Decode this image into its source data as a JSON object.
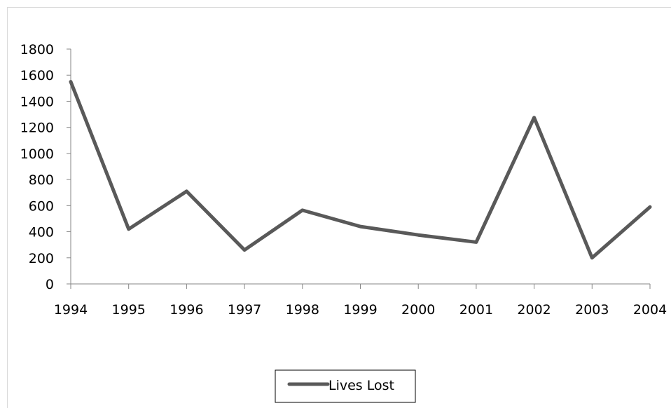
{
  "chart_data": {
    "type": "line",
    "categories": [
      "1994",
      "1995",
      "1996",
      "1997",
      "1998",
      "1999",
      "2000",
      "2001",
      "2002",
      "2003",
      "2004"
    ],
    "series": [
      {
        "name": "Lives Lost",
        "values": [
          1550,
          420,
          710,
          260,
          565,
          440,
          375,
          320,
          1275,
          200,
          590
        ],
        "color": "#595959"
      }
    ],
    "ylim": [
      0,
      1800
    ],
    "yticks": [
      0,
      200,
      400,
      600,
      800,
      1000,
      1200,
      1400,
      1600,
      1800
    ],
    "grid": false,
    "legend_position": "bottom"
  }
}
